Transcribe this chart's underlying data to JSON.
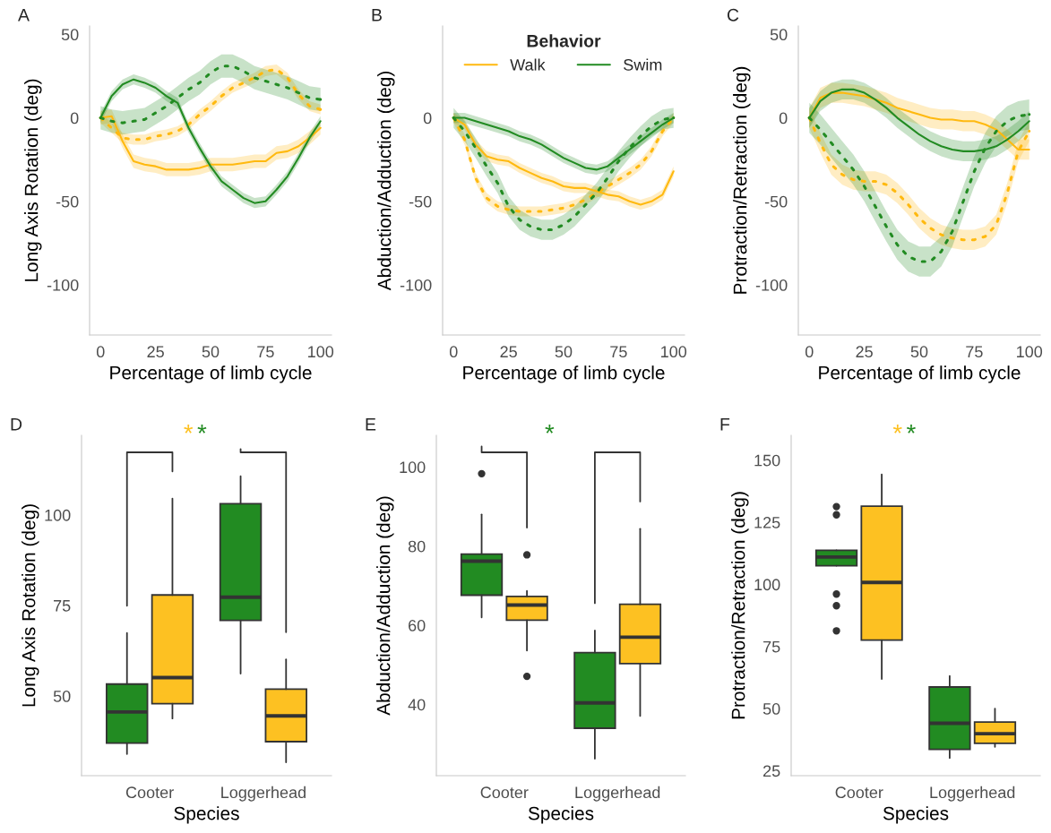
{
  "chart_data": [
    {
      "type": "line",
      "title": "A",
      "xlabel": "Percentage of limb cycle",
      "ylabel": "Long Axis Rotation (deg)",
      "xlim": [
        -5,
        105
      ],
      "ylim": [
        -130,
        55
      ],
      "xticks": [
        0,
        25,
        50,
        75,
        100
      ],
      "yticks": [
        -100,
        -50,
        0,
        50
      ],
      "grid": false,
      "legend": false,
      "x": [
        0,
        5,
        10,
        15,
        20,
        25,
        30,
        35,
        40,
        45,
        50,
        55,
        60,
        65,
        70,
        75,
        80,
        85,
        90,
        95,
        100
      ],
      "series": [
        {
          "color": "#ffb90f",
          "line_style": "solid",
          "values": [
            0,
            1,
            -14,
            -26,
            -28,
            -29,
            -31,
            -31,
            -31,
            -30,
            -28,
            -28,
            -28,
            -27,
            -26,
            -26,
            -21,
            -20,
            -17,
            -12,
            -6
          ],
          "lower": [
            -4,
            -3,
            -18,
            -30,
            -32,
            -33,
            -35,
            -35,
            -35,
            -34,
            -32,
            -32,
            -32,
            -31,
            -30,
            -30,
            -25,
            -24,
            -21,
            -16,
            -10
          ],
          "upper": [
            4,
            5,
            -10,
            -22,
            -24,
            -25,
            -27,
            -27,
            -27,
            -26,
            -24,
            -24,
            -24,
            -23,
            -22,
            -22,
            -17,
            -16,
            -13,
            -8,
            -2
          ]
        },
        {
          "color": "#ffb90f",
          "line_style": "dotted",
          "values": [
            0,
            -6,
            -12,
            -13,
            -13,
            -11,
            -10,
            -8,
            -4,
            2,
            7,
            13,
            18,
            21,
            24,
            28,
            29,
            24,
            14,
            7,
            5
          ],
          "lower": [
            -3,
            -9,
            -15,
            -16,
            -16,
            -14,
            -13,
            -11,
            -7,
            -1,
            4,
            10,
            15,
            18,
            21,
            25,
            26,
            21,
            11,
            4,
            2
          ],
          "upper": [
            3,
            -3,
            -9,
            -10,
            -10,
            -8,
            -7,
            -5,
            -1,
            5,
            10,
            16,
            21,
            24,
            27,
            31,
            32,
            27,
            17,
            10,
            8
          ]
        },
        {
          "color": "#228b22",
          "line_style": "solid",
          "values": [
            0,
            13,
            20,
            23,
            21,
            18,
            13,
            9,
            -6,
            -18,
            -29,
            -38,
            -43,
            -48,
            -51,
            -50,
            -43,
            -35,
            -24,
            -12,
            -2
          ],
          "lower": [
            -3,
            10,
            17,
            20,
            18,
            15,
            10,
            6,
            -9,
            -21,
            -32,
            -41,
            -46,
            -51,
            -54,
            -53,
            -46,
            -38,
            -27,
            -15,
            -5
          ],
          "upper": [
            3,
            16,
            23,
            26,
            24,
            21,
            16,
            12,
            -3,
            -15,
            -26,
            -35,
            -40,
            -45,
            -48,
            -47,
            -40,
            -32,
            -21,
            -9,
            1
          ]
        },
        {
          "color": "#228b22",
          "line_style": "dotted",
          "values": [
            0,
            -2,
            -3,
            -2,
            -1,
            3,
            7,
            12,
            17,
            21,
            27,
            31,
            31,
            28,
            24,
            22,
            20,
            18,
            15,
            12,
            11
          ],
          "lower": [
            -7,
            -9,
            -10,
            -9,
            -8,
            -4,
            0,
            5,
            10,
            14,
            20,
            24,
            24,
            21,
            17,
            15,
            13,
            11,
            8,
            5,
            4
          ],
          "upper": [
            7,
            5,
            4,
            5,
            6,
            10,
            14,
            19,
            24,
            28,
            34,
            38,
            38,
            35,
            31,
            29,
            27,
            25,
            22,
            19,
            18
          ]
        }
      ]
    },
    {
      "type": "line",
      "title": "B",
      "xlabel": "Percentage of limb cycle",
      "ylabel": "Abduction/Adduction (deg)",
      "legend_title": "Behavior",
      "legend": "top",
      "xlim": [
        -5,
        105
      ],
      "ylim": [
        -130,
        55
      ],
      "xticks": [
        0,
        25,
        50,
        75,
        100
      ],
      "yticks": [
        -100,
        -50,
        0
      ],
      "grid": false,
      "x": [
        0,
        5,
        10,
        15,
        20,
        25,
        30,
        35,
        40,
        45,
        50,
        55,
        60,
        65,
        70,
        75,
        80,
        85,
        90,
        95,
        100
      ],
      "series": [
        {
          "name": "Walk",
          "color": "#ffb90f",
          "line_style": "solid",
          "values": [
            0,
            -4,
            -16,
            -23,
            -25,
            -26,
            -30,
            -33,
            -36,
            -38,
            -41,
            -42,
            -42,
            -44,
            -46,
            -47,
            -50,
            -52,
            -50,
            -46,
            -32
          ],
          "lower": [
            -3,
            -7,
            -19,
            -26,
            -28,
            -29,
            -33,
            -36,
            -39,
            -41,
            -44,
            -45,
            -45,
            -47,
            -49,
            -50,
            -53,
            -55,
            -53,
            -49,
            -35
          ],
          "upper": [
            3,
            -1,
            -13,
            -20,
            -22,
            -23,
            -27,
            -30,
            -33,
            -35,
            -38,
            -39,
            -39,
            -41,
            -43,
            -44,
            -47,
            -49,
            -47,
            -43,
            -29
          ]
        },
        {
          "color": "#ffb90f",
          "line_style": "dotted",
          "values": [
            0,
            -13,
            -36,
            -48,
            -53,
            -55,
            -56,
            -56,
            -56,
            -55,
            -54,
            -52,
            -49,
            -45,
            -41,
            -37,
            -33,
            -28,
            -20,
            -8,
            0
          ],
          "lower": [
            -3,
            -16,
            -39,
            -51,
            -56,
            -58,
            -59,
            -59,
            -59,
            -58,
            -57,
            -55,
            -52,
            -48,
            -44,
            -40,
            -36,
            -31,
            -23,
            -11,
            -3
          ],
          "upper": [
            3,
            -10,
            -33,
            -45,
            -50,
            -52,
            -53,
            -53,
            -53,
            -52,
            -51,
            -49,
            -46,
            -42,
            -38,
            -34,
            -30,
            -25,
            -17,
            -5,
            3
          ]
        },
        {
          "name": "Swim",
          "color": "#228b22",
          "line_style": "solid",
          "values": [
            0,
            0,
            -2,
            -4,
            -6,
            -8,
            -11,
            -13,
            -16,
            -20,
            -24,
            -27,
            -30,
            -31,
            -29,
            -24,
            -19,
            -14,
            -9,
            -4,
            0
          ],
          "lower": [
            -3,
            -3,
            -5,
            -7,
            -9,
            -11,
            -14,
            -16,
            -19,
            -23,
            -27,
            -30,
            -33,
            -34,
            -32,
            -27,
            -22,
            -17,
            -12,
            -7,
            -3
          ],
          "upper": [
            3,
            3,
            1,
            -1,
            -3,
            -5,
            -8,
            -10,
            -13,
            -17,
            -21,
            -24,
            -27,
            -28,
            -26,
            -21,
            -16,
            -11,
            -6,
            -1,
            3
          ]
        },
        {
          "color": "#228b22",
          "line_style": "dotted",
          "values": [
            0,
            -8,
            -18,
            -29,
            -39,
            -53,
            -61,
            -65,
            -67,
            -67,
            -64,
            -59,
            -52,
            -45,
            -36,
            -26,
            -18,
            -11,
            -5,
            -1,
            0
          ],
          "lower": [
            -6,
            -14,
            -24,
            -35,
            -45,
            -59,
            -67,
            -71,
            -73,
            -73,
            -70,
            -65,
            -58,
            -51,
            -42,
            -32,
            -24,
            -17,
            -11,
            -7,
            -6
          ],
          "upper": [
            6,
            -2,
            -12,
            -23,
            -33,
            -47,
            -55,
            -59,
            -61,
            -61,
            -58,
            -53,
            -46,
            -39,
            -30,
            -20,
            -12,
            -5,
            1,
            5,
            6
          ]
        }
      ]
    },
    {
      "type": "line",
      "title": "C",
      "xlabel": "Percentage of limb cycle",
      "ylabel": "Protraction/Retraction (deg)",
      "xlim": [
        -5,
        105
      ],
      "ylim": [
        -130,
        55
      ],
      "xticks": [
        0,
        25,
        50,
        75,
        100
      ],
      "yticks": [
        -100,
        -50,
        0,
        50
      ],
      "grid": false,
      "legend": false,
      "x": [
        0,
        5,
        10,
        15,
        20,
        25,
        30,
        35,
        40,
        45,
        50,
        55,
        60,
        65,
        70,
        75,
        80,
        85,
        90,
        95,
        100
      ],
      "series": [
        {
          "color": "#ffb90f",
          "line_style": "solid",
          "values": [
            0,
            12,
            15,
            15,
            14,
            13,
            11,
            9,
            6,
            4,
            2,
            0,
            -1,
            -1,
            -2,
            -2,
            -4,
            -7,
            -13,
            -19,
            -19
          ],
          "lower": [
            -6,
            6,
            9,
            9,
            8,
            7,
            5,
            3,
            0,
            -2,
            -4,
            -6,
            -7,
            -7,
            -8,
            -8,
            -10,
            -13,
            -19,
            -25,
            -25
          ],
          "upper": [
            6,
            18,
            21,
            21,
            20,
            19,
            17,
            15,
            12,
            10,
            8,
            6,
            5,
            5,
            4,
            4,
            2,
            -1,
            -7,
            -13,
            -13
          ]
        },
        {
          "color": "#ffb90f",
          "line_style": "dotted",
          "values": [
            0,
            -15,
            -28,
            -34,
            -37,
            -38,
            -38,
            -40,
            -45,
            -52,
            -60,
            -66,
            -70,
            -72,
            -73,
            -73,
            -71,
            -64,
            -45,
            -20,
            -8
          ],
          "lower": [
            -6,
            -21,
            -34,
            -40,
            -43,
            -44,
            -44,
            -46,
            -51,
            -58,
            -66,
            -72,
            -76,
            -78,
            -79,
            -79,
            -77,
            -70,
            -51,
            -26,
            -14
          ],
          "upper": [
            6,
            -9,
            -22,
            -28,
            -31,
            -32,
            -32,
            -34,
            -39,
            -46,
            -54,
            -60,
            -64,
            -66,
            -67,
            -67,
            -65,
            -58,
            -39,
            -14,
            -2
          ]
        },
        {
          "color": "#228b22",
          "line_style": "solid",
          "values": [
            0,
            10,
            15,
            17,
            17,
            15,
            11,
            6,
            0,
            -5,
            -10,
            -14,
            -17,
            -19,
            -20,
            -20,
            -19,
            -17,
            -13,
            -8,
            -2
          ],
          "lower": [
            -6,
            4,
            9,
            11,
            11,
            9,
            5,
            0,
            -6,
            -11,
            -16,
            -20,
            -23,
            -25,
            -26,
            -26,
            -25,
            -23,
            -19,
            -14,
            -8
          ],
          "upper": [
            6,
            16,
            21,
            23,
            23,
            21,
            17,
            12,
            6,
            1,
            -4,
            -8,
            -11,
            -13,
            -14,
            -14,
            -13,
            -11,
            -7,
            -2,
            4
          ]
        },
        {
          "color": "#228b22",
          "line_style": "dotted",
          "values": [
            0,
            -7,
            -15,
            -23,
            -31,
            -41,
            -53,
            -65,
            -76,
            -83,
            -86,
            -86,
            -80,
            -68,
            -50,
            -32,
            -18,
            -8,
            -2,
            1,
            2
          ],
          "lower": [
            -9,
            -16,
            -24,
            -32,
            -40,
            -50,
            -62,
            -74,
            -85,
            -92,
            -95,
            -95,
            -89,
            -77,
            -59,
            -41,
            -27,
            -17,
            -11,
            -8,
            -7
          ],
          "upper": [
            9,
            2,
            -6,
            -14,
            -22,
            -32,
            -44,
            -56,
            -67,
            -74,
            -77,
            -77,
            -71,
            -59,
            -41,
            -23,
            -9,
            1,
            7,
            10,
            11
          ]
        }
      ]
    },
    {
      "type": "box",
      "title": "D",
      "xlabel": "Species",
      "ylabel": "Long Axis Rotation (deg)",
      "categories": [
        "Cooter",
        "Loggerhead"
      ],
      "ylim": [
        28,
        122
      ],
      "yticks": [
        50,
        75,
        100
      ],
      "grid": false,
      "legend": false,
      "annotations": [
        "*",
        "*"
      ],
      "series": [
        {
          "color": "#228b22",
          "boxes": [
            {
              "low": 34,
              "q1": 37,
              "median": 45.6,
              "q3": 53.3,
              "high": 67.4
            },
            {
              "low": 56.2,
              "q1": 70.9,
              "median": 77.3,
              "q3": 103.1,
              "high": 110.7
            }
          ]
        },
        {
          "color": "#fdc122",
          "boxes": [
            {
              "low": 43.8,
              "q1": 47.9,
              "median": 55.1,
              "q3": 77.9,
              "high": 104.5
            },
            {
              "low": 31.7,
              "q1": 37.4,
              "median": 44.5,
              "q3": 51.9,
              "high": 60.1
            }
          ]
        }
      ]
    },
    {
      "type": "box",
      "title": "E",
      "xlabel": "Species",
      "ylabel": "Abduction/Adduction (deg)",
      "categories": [
        "Cooter",
        "Loggerhead"
      ],
      "ylim": [
        22,
        108
      ],
      "yticks": [
        40,
        60,
        80,
        100
      ],
      "grid": false,
      "legend": false,
      "annotations": [
        "*"
      ],
      "series": [
        {
          "color": "#228b22",
          "boxes": [
            {
              "low": 62,
              "q1": 67.6,
              "median": 76.2,
              "q3": 78,
              "high": 88,
              "outliers": [
                98.3
              ]
            },
            {
              "low": 26.3,
              "q1": 34,
              "median": 40.4,
              "q3": 53.1,
              "high": 58.7
            }
          ]
        },
        {
          "color": "#fdc122",
          "boxes": [
            {
              "low": 53.6,
              "q1": 61.3,
              "median": 65.1,
              "q3": 67.3,
              "high": 68.7,
              "outliers": [
                77.8,
                47.1
              ]
            },
            {
              "low": 37.1,
              "q1": 50.3,
              "median": 57,
              "q3": 65.3,
              "high": 84.4
            }
          ]
        }
      ]
    },
    {
      "type": "box",
      "title": "F",
      "xlabel": "Species",
      "ylabel": "Protraction/Retraction (deg)",
      "categories": [
        "Cooter",
        "Loggerhead"
      ],
      "ylim": [
        23,
        160
      ],
      "yticks": [
        25,
        50,
        75,
        100,
        125,
        150
      ],
      "grid": false,
      "legend": false,
      "annotations": [
        "*",
        "*"
      ],
      "series": [
        {
          "color": "#228b22",
          "boxes": [
            {
              "low": 107.5,
              "q1": 107.5,
              "median": 111,
              "q3": 113.7,
              "high": 113.7,
              "outliers": [
                131.3,
                128,
                96.1,
                91.4,
                81.3
              ]
            },
            {
              "low": 30.1,
              "q1": 33.6,
              "median": 44.1,
              "q3": 58.7,
              "high": 63.1
            }
          ]
        },
        {
          "color": "#fdc122",
          "boxes": [
            {
              "low": 61.9,
              "q1": 77.6,
              "median": 100.8,
              "q3": 131.5,
              "high": 144.3
            },
            {
              "low": 34.6,
              "q1": 36,
              "median": 39.9,
              "q3": 44.6,
              "high": 50
            }
          ]
        }
      ]
    }
  ]
}
